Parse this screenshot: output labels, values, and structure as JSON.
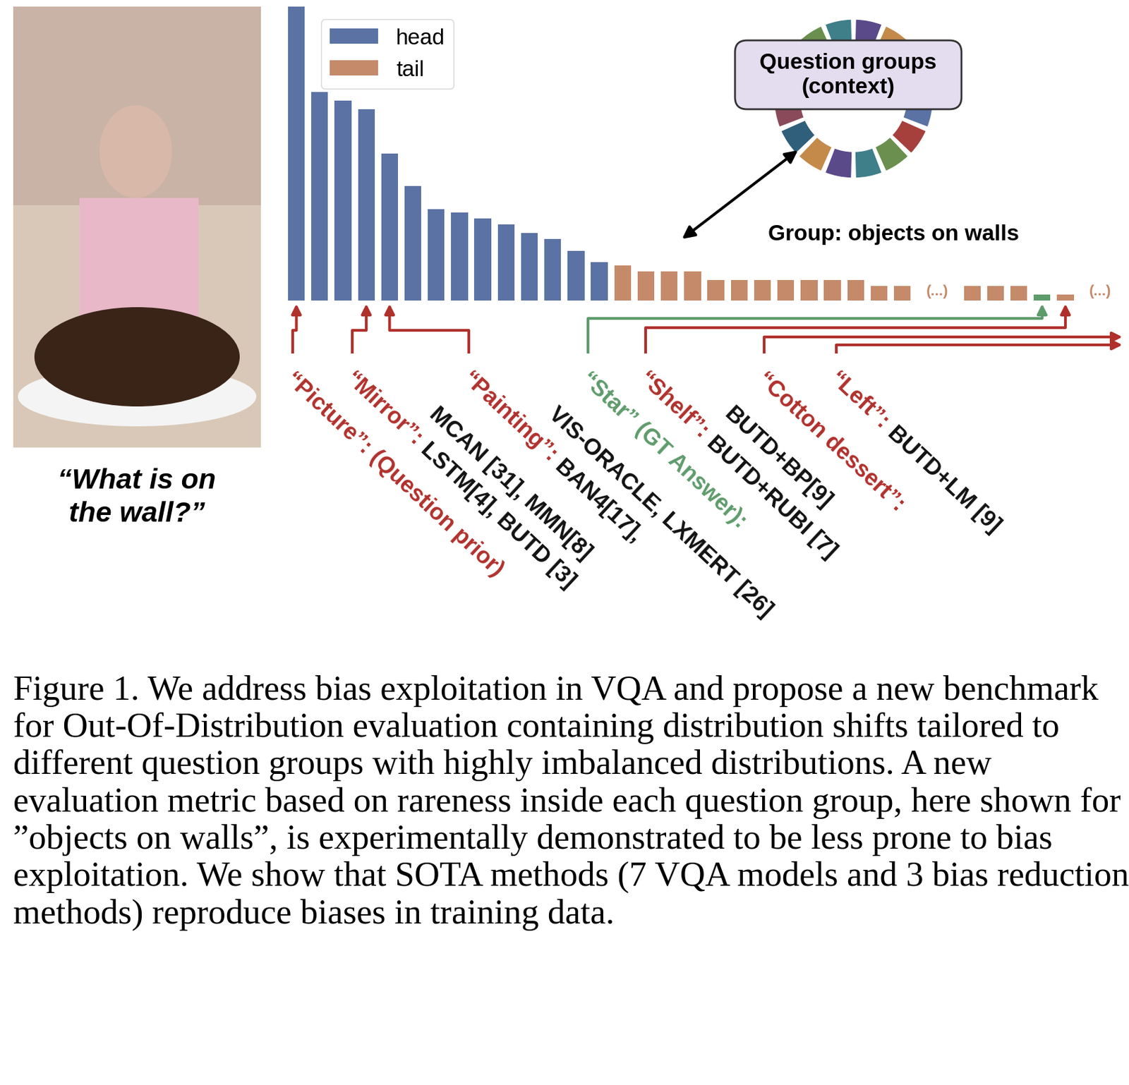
{
  "chart_data": {
    "type": "bar",
    "categories": [
      null,
      null,
      null,
      null,
      null,
      null,
      null,
      null,
      null,
      null,
      null,
      null,
      null,
      null,
      null,
      null,
      null,
      null,
      null,
      null,
      null,
      null,
      null,
      null,
      null,
      null,
      null,
      null,
      null,
      null,
      null,
      null,
      null,
      null,
      null,
      null
    ],
    "series": [
      {
        "name": "head",
        "color": "#5b72a4",
        "values": [
          100,
          71,
          68,
          65,
          50,
          39,
          31,
          30,
          28,
          26,
          23,
          21,
          17,
          13,
          null,
          null,
          null,
          null,
          null,
          null,
          null,
          null,
          null,
          null,
          null,
          null,
          null,
          null,
          null,
          null,
          null,
          null,
          null,
          null,
          null,
          null
        ]
      },
      {
        "name": "tail",
        "color": "#c48a6a",
        "values": [
          null,
          null,
          null,
          null,
          null,
          null,
          null,
          null,
          null,
          null,
          null,
          null,
          null,
          null,
          12,
          10,
          10,
          10,
          7,
          7,
          7,
          7,
          7,
          7,
          7,
          5,
          5,
          null,
          null,
          5,
          5,
          5,
          2,
          2,
          null,
          null
        ],
        "colors": [
          null,
          null,
          null,
          null,
          null,
          null,
          null,
          null,
          null,
          null,
          null,
          null,
          null,
          null,
          "#c48a6a",
          "#c48a6a",
          "#c48a6a",
          "#c48a6a",
          "#c48a6a",
          "#c48a6a",
          "#c48a6a",
          "#c48a6a",
          "#c48a6a",
          "#c48a6a",
          "#c48a6a",
          "#c48a6a",
          "#c48a6a",
          null,
          null,
          "#c48a6a",
          "#c48a6a",
          "#c48a6a",
          "#5e9b6b",
          "#c48a6a",
          null,
          null
        ]
      }
    ],
    "ylim": [
      0,
      100
    ],
    "tick_labels": false,
    "legend": "upper left",
    "annotations": [
      {
        "text": "(...)",
        "x": 27.5
      },
      {
        "text": "(...)",
        "x": 34.5
      }
    ]
  },
  "question": [
    "“What is on",
    "the wall?”"
  ],
  "question_groups": [
    "Question groups",
    "(context)"
  ],
  "group": "Group: objects on walls",
  "answers": [
    {
      "bar": 0,
      "lines": [
        [
          {
            "text": "“Picture”: (Question prior)",
            "color": "#b0302c"
          }
        ]
      ]
    },
    {
      "bar": 3,
      "lines": [
        [
          {
            "text": "“Mirror”:",
            "color": "#b0302c"
          },
          {
            "text": " LSTM[4], BUTD [3]",
            "color": "#111111"
          }
        ]
      ]
    },
    {
      "bar": 4,
      "lines": [
        [
          {
            "text": "“Painting”:",
            "color": "#b0302c"
          },
          {
            "text": " BAN4[17],",
            "color": "#111111"
          }
        ],
        [
          {
            "text": "MCAN [31], MMN[8]",
            "color": "#111111"
          }
        ]
      ]
    },
    {
      "bar": 32,
      "lines": [
        [
          {
            "text": "“Star” (GT Answer):",
            "color": "#5e9b6b"
          }
        ],
        [
          {
            "text": "VIS-ORACLE, LXMERT [26]",
            "color": "#111111"
          }
        ]
      ]
    },
    {
      "bar": 33,
      "lines": [
        [
          {
            "text": "“Shelf”:",
            "color": "#b0302c"
          },
          {
            "text": " BUTD+RUBI [7]",
            "color": "#111111"
          }
        ]
      ]
    },
    {
      "bar": null,
      "lines": [
        [
          {
            "text": "“Cotton dessert”:",
            "color": "#b0302c"
          }
        ],
        [
          {
            "text": "BUTD+BP[9]",
            "color": "#111111"
          }
        ]
      ]
    },
    {
      "bar": null,
      "lines": [
        [
          {
            "text": "“Left”:",
            "color": "#b0302c"
          },
          {
            "text": " BUTD+LM [9]",
            "color": "#111111"
          }
        ]
      ]
    }
  ],
  "caption": "Figure 1. We address bias exploitation in VQA and propose a new benchmark for Out-Of-Distribution evaluation containing distribution shifts tailored to different question groups with highly imbalanced distributions. A new evaluation metric based on rareness inside each question group, here shown for ”objects on walls”, is experimentally demonstrated to be less prone to bias exploitation. We show that SOTA methods (7 VQA models and 3 bias reduction methods) reproduce biases in training data."
}
